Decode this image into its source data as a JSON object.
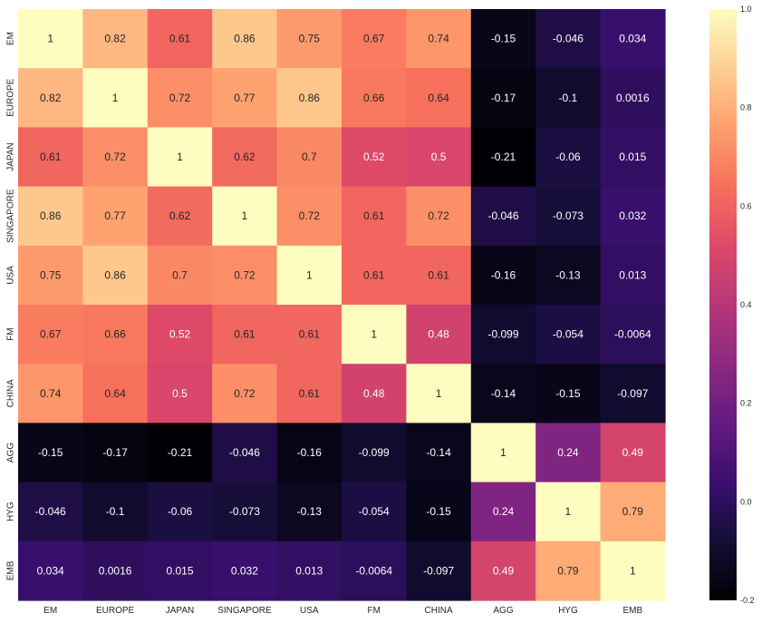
{
  "chart_data": {
    "type": "heatmap",
    "title": "",
    "xlabel": "",
    "ylabel": "",
    "x_labels": [
      "EM",
      "EUROPE",
      "JAPAN",
      "SINGAPORE",
      "USA",
      "FM",
      "CHINA",
      "AGG",
      "HYG",
      "EMB"
    ],
    "y_labels": [
      "EM",
      "EUROPE",
      "JAPAN",
      "SINGAPORE",
      "USA",
      "FM",
      "CHINA",
      "AGG",
      "HYG",
      "EMB"
    ],
    "values": [
      [
        1,
        0.82,
        0.61,
        0.86,
        0.75,
        0.67,
        0.74,
        -0.15,
        -0.046,
        0.034
      ],
      [
        0.82,
        1,
        0.72,
        0.77,
        0.86,
        0.66,
        0.64,
        -0.17,
        -0.1,
        0.0016
      ],
      [
        0.61,
        0.72,
        1,
        0.62,
        0.7,
        0.52,
        0.5,
        -0.21,
        -0.06,
        0.015
      ],
      [
        0.86,
        0.77,
        0.62,
        1,
        0.72,
        0.61,
        0.72,
        -0.046,
        -0.073,
        0.032
      ],
      [
        0.75,
        0.86,
        0.7,
        0.72,
        1,
        0.61,
        0.61,
        -0.16,
        -0.13,
        0.013
      ],
      [
        0.67,
        0.66,
        0.52,
        0.61,
        0.61,
        1,
        0.48,
        -0.099,
        -0.054,
        -0.0064
      ],
      [
        0.74,
        0.64,
        0.5,
        0.72,
        0.61,
        0.48,
        1,
        -0.14,
        -0.15,
        -0.097
      ],
      [
        -0.15,
        -0.17,
        -0.21,
        -0.046,
        -0.16,
        -0.099,
        -0.14,
        1,
        0.24,
        0.49
      ],
      [
        -0.046,
        -0.1,
        -0.06,
        -0.073,
        -0.13,
        -0.054,
        -0.15,
        0.24,
        1,
        0.79
      ],
      [
        0.034,
        0.0016,
        0.015,
        0.032,
        0.013,
        -0.0064,
        -0.097,
        0.49,
        0.79,
        1
      ]
    ],
    "value_labels": [
      [
        "1",
        "0.82",
        "0.61",
        "0.86",
        "0.75",
        "0.67",
        "0.74",
        "-0.15",
        "-0.046",
        "0.034"
      ],
      [
        "0.82",
        "1",
        "0.72",
        "0.77",
        "0.86",
        "0.66",
        "0.64",
        "-0.17",
        "-0.1",
        "0.0016"
      ],
      [
        "0.61",
        "0.72",
        "1",
        "0.62",
        "0.7",
        "0.52",
        "0.5",
        "-0.21",
        "-0.06",
        "0.015"
      ],
      [
        "0.86",
        "0.77",
        "0.62",
        "1",
        "0.72",
        "0.61",
        "0.72",
        "-0.046",
        "-0.073",
        "0.032"
      ],
      [
        "0.75",
        "0.86",
        "0.7",
        "0.72",
        "1",
        "0.61",
        "0.61",
        "-0.16",
        "-0.13",
        "0.013"
      ],
      [
        "0.67",
        "0.66",
        "0.52",
        "0.61",
        "0.61",
        "1",
        "0.48",
        "-0.099",
        "-0.054",
        "-0.0064"
      ],
      [
        "0.74",
        "0.64",
        "0.5",
        "0.72",
        "0.61",
        "0.48",
        "1",
        "-0.14",
        "-0.15",
        "-0.097"
      ],
      [
        "-0.15",
        "-0.17",
        "-0.21",
        "-0.046",
        "-0.16",
        "-0.099",
        "-0.14",
        "1",
        "0.24",
        "0.49"
      ],
      [
        "-0.046",
        "-0.1",
        "-0.06",
        "-0.073",
        "-0.13",
        "-0.054",
        "-0.15",
        "0.24",
        "1",
        "0.79"
      ],
      [
        "0.034",
        "0.0016",
        "0.015",
        "0.032",
        "0.013",
        "-0.0064",
        "-0.097",
        "0.49",
        "0.79",
        "1"
      ]
    ],
    "colorbar": {
      "min": -0.2,
      "max": 1.0,
      "ticks": [
        -0.2,
        0.0,
        0.2,
        0.4,
        0.6,
        0.8,
        1.0
      ],
      "tick_labels": [
        "-0.2",
        "0.0",
        "0.2",
        "0.4",
        "0.6",
        "0.8",
        "1.0"
      ]
    },
    "colormap": "magma",
    "colormap_stops": [
      "#000004",
      "#140e36",
      "#3b0f70",
      "#641a80",
      "#8c2981",
      "#b73779",
      "#de4968",
      "#f7705c",
      "#fe9f6d",
      "#fecf92",
      "#fcfdbf"
    ],
    "annotation_text_color_light": "#ffffff",
    "annotation_text_color_dark": "#262626",
    "grid": false,
    "legend": "colorbar at right"
  }
}
